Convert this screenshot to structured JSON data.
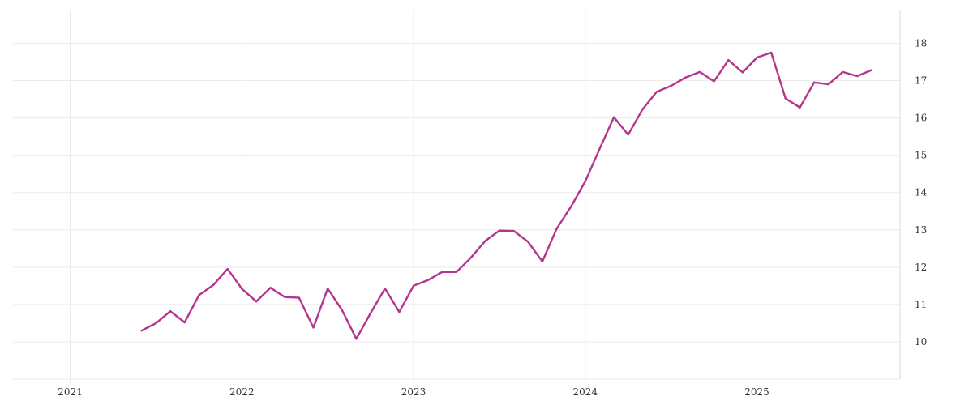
{
  "chart_data": {
    "type": "line",
    "title": "",
    "xlabel": "",
    "ylabel": "",
    "x_ticks": [
      "2021",
      "2022",
      "2023",
      "2024",
      "2025"
    ],
    "y_ticks": [
      10,
      11,
      12,
      13,
      14,
      15,
      16,
      17,
      18
    ],
    "ylim": [
      9,
      18.9
    ],
    "xlim": [
      "2020-09",
      "2025-11"
    ],
    "y_axis_position": "right",
    "grid": true,
    "legend": "none",
    "colors": {
      "line": "#b5358d",
      "grid": "#ebebeb"
    },
    "series": [
      {
        "x": [
          "2021-06",
          "2021-07",
          "2021-08",
          "2021-09",
          "2021-10",
          "2021-11",
          "2021-12",
          "2022-01",
          "2022-02",
          "2022-03",
          "2022-04",
          "2022-05",
          "2022-06",
          "2022-07",
          "2022-08",
          "2022-09",
          "2022-10",
          "2022-11",
          "2022-12",
          "2023-01",
          "2023-02",
          "2023-03",
          "2023-04",
          "2023-05",
          "2023-06",
          "2023-07",
          "2023-08",
          "2023-09",
          "2023-10",
          "2023-11",
          "2023-12",
          "2024-01",
          "2024-02",
          "2024-03",
          "2024-04",
          "2024-05",
          "2024-06",
          "2024-07",
          "2024-08",
          "2024-09",
          "2024-10",
          "2024-11",
          "2024-12",
          "2025-01",
          "2025-02",
          "2025-03",
          "2025-04",
          "2025-05",
          "2025-06",
          "2025-07",
          "2025-08",
          "2025-09"
        ],
        "values": [
          10.3,
          10.5,
          10.82,
          10.52,
          11.25,
          11.52,
          11.95,
          11.42,
          11.08,
          11.45,
          11.2,
          11.18,
          10.38,
          11.43,
          10.85,
          10.08,
          10.77,
          11.43,
          10.8,
          11.5,
          11.65,
          11.87,
          11.87,
          12.25,
          12.7,
          12.98,
          12.97,
          12.68,
          12.15,
          13.03,
          13.62,
          14.3,
          15.17,
          16.02,
          15.55,
          16.23,
          16.7,
          16.86,
          17.08,
          17.23,
          16.98,
          17.55,
          17.22,
          17.62,
          17.75,
          16.52,
          16.28,
          16.95,
          16.9,
          17.23,
          17.12,
          17.28
        ]
      }
    ]
  }
}
